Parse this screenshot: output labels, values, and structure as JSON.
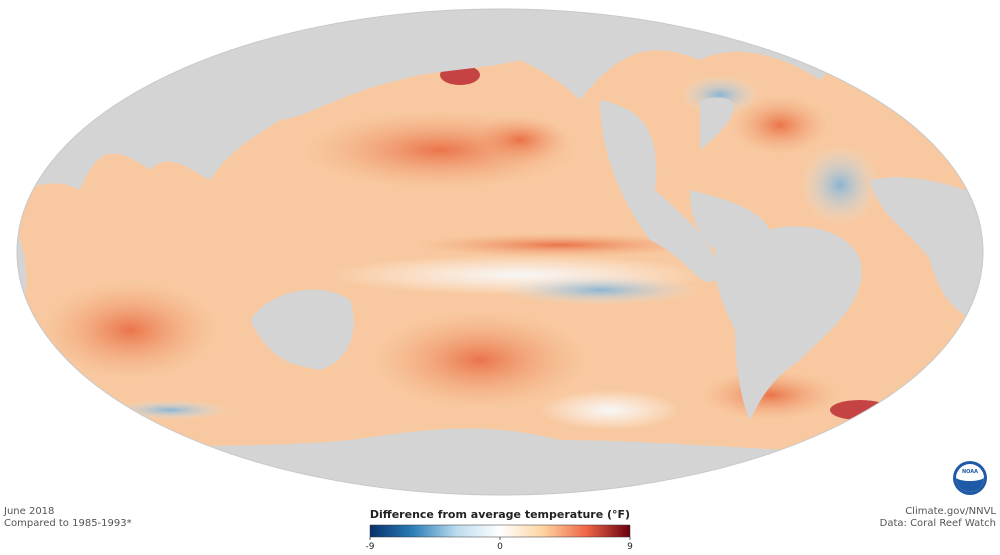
{
  "map": {
    "caption": {
      "date": "June 2018",
      "baseline": "Compared to 1985-1993*"
    },
    "credits": {
      "source": "Climate.gov/NNVL",
      "data": "Data: Coral Reef Watch"
    },
    "logo": "NOAA"
  },
  "legend": {
    "title": "Difference from average temperature (°F)",
    "ticks": [
      -9,
      0,
      9
    ],
    "colors": [
      "#08306b",
      "#2c7fb8",
      "#bcdcef",
      "#ffffff",
      "#fdd49e",
      "#ef6548",
      "#67000d"
    ]
  }
}
